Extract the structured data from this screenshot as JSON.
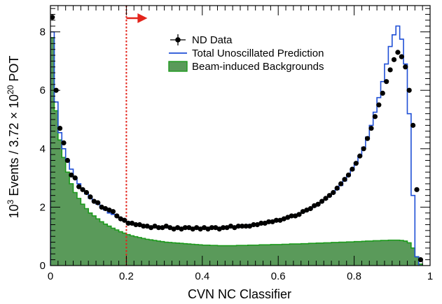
{
  "chart_data": {
    "type": "histogram",
    "xlabel": "CVN NC Classifier",
    "ylabel": {
      "prefix": "10",
      "prefix_sup": "3",
      "middle": " Events / 3.72 × 10",
      "mid_sup": "20",
      "suffix": " POT"
    },
    "xlim": [
      0,
      1
    ],
    "ylim": [
      0,
      8.9
    ],
    "x_ticks": [
      "0",
      "0.2",
      "0.4",
      "0.6",
      "0.8",
      "1"
    ],
    "y_ticks": [
      "0",
      "2",
      "4",
      "6",
      "8"
    ],
    "cut_line": {
      "x": 0.2,
      "style": "dotted",
      "color": "#e3241b",
      "arrow": "right"
    },
    "legend": [
      {
        "label": "ND Data",
        "kind": "marker"
      },
      {
        "label": "Total Unoscillated Prediction",
        "kind": "line"
      },
      {
        "label": "Beam-induced Backgrounds",
        "kind": "fill"
      }
    ],
    "colors": {
      "data": "#000000",
      "prediction": "#1f4fd6",
      "background_fill": "#5a9a5a",
      "background_line": "#1c9a1c",
      "cut": "#e3241b"
    },
    "bin_width": 0.01,
    "series": [
      {
        "name": "ND Data",
        "x": [
          0.005,
          0.015,
          0.025,
          0.035,
          0.045,
          0.055,
          0.065,
          0.075,
          0.085,
          0.095,
          0.105,
          0.115,
          0.125,
          0.135,
          0.145,
          0.155,
          0.165,
          0.175,
          0.185,
          0.195,
          0.205,
          0.215,
          0.225,
          0.235,
          0.245,
          0.255,
          0.265,
          0.275,
          0.285,
          0.295,
          0.305,
          0.315,
          0.325,
          0.335,
          0.345,
          0.355,
          0.365,
          0.375,
          0.385,
          0.395,
          0.405,
          0.415,
          0.425,
          0.435,
          0.445,
          0.455,
          0.465,
          0.475,
          0.485,
          0.495,
          0.505,
          0.515,
          0.525,
          0.535,
          0.545,
          0.555,
          0.565,
          0.575,
          0.585,
          0.595,
          0.605,
          0.615,
          0.625,
          0.635,
          0.645,
          0.655,
          0.665,
          0.675,
          0.685,
          0.695,
          0.705,
          0.715,
          0.725,
          0.735,
          0.745,
          0.755,
          0.765,
          0.775,
          0.785,
          0.795,
          0.805,
          0.815,
          0.825,
          0.835,
          0.845,
          0.855,
          0.865,
          0.875,
          0.885,
          0.895,
          0.905,
          0.915,
          0.925,
          0.935,
          0.945,
          0.955,
          0.965,
          0.975
        ],
        "values": [
          8.5,
          6.0,
          4.7,
          4.2,
          3.6,
          3.1,
          3.0,
          2.7,
          2.6,
          2.5,
          2.35,
          2.2,
          2.15,
          2.0,
          1.95,
          1.9,
          1.85,
          1.7,
          1.6,
          1.55,
          1.45,
          1.45,
          1.4,
          1.4,
          1.35,
          1.35,
          1.3,
          1.35,
          1.3,
          1.3,
          1.35,
          1.3,
          1.25,
          1.3,
          1.25,
          1.3,
          1.3,
          1.25,
          1.3,
          1.25,
          1.3,
          1.25,
          1.3,
          1.3,
          1.25,
          1.3,
          1.3,
          1.35,
          1.3,
          1.35,
          1.35,
          1.35,
          1.35,
          1.4,
          1.4,
          1.45,
          1.45,
          1.5,
          1.5,
          1.55,
          1.55,
          1.6,
          1.65,
          1.7,
          1.7,
          1.75,
          1.85,
          1.9,
          1.95,
          2.05,
          2.1,
          2.2,
          2.3,
          2.4,
          2.5,
          2.65,
          2.8,
          2.95,
          3.1,
          3.3,
          3.5,
          3.75,
          4.0,
          4.35,
          4.7,
          5.1,
          5.5,
          5.9,
          6.3,
          6.7,
          7.05,
          7.3,
          7.15,
          6.8,
          6.0,
          4.8,
          2.6,
          0.2
        ]
      },
      {
        "name": "Total Unoscillated Prediction",
        "values": [
          8.0,
          5.6,
          4.55,
          4.0,
          3.6,
          3.3,
          3.0,
          2.8,
          2.6,
          2.45,
          2.3,
          2.2,
          2.1,
          2.0,
          1.9,
          1.8,
          1.75,
          1.68,
          1.62,
          1.56,
          1.5,
          1.46,
          1.43,
          1.4,
          1.38,
          1.35,
          1.33,
          1.32,
          1.31,
          1.3,
          1.29,
          1.29,
          1.28,
          1.28,
          1.28,
          1.28,
          1.28,
          1.28,
          1.28,
          1.28,
          1.29,
          1.29,
          1.3,
          1.3,
          1.31,
          1.32,
          1.33,
          1.34,
          1.35,
          1.36,
          1.37,
          1.38,
          1.4,
          1.41,
          1.43,
          1.45,
          1.47,
          1.49,
          1.52,
          1.55,
          1.58,
          1.61,
          1.65,
          1.69,
          1.73,
          1.78,
          1.83,
          1.89,
          1.95,
          2.02,
          2.1,
          2.18,
          2.27,
          2.37,
          2.48,
          2.6,
          2.74,
          2.9,
          3.07,
          3.27,
          3.5,
          3.75,
          4.05,
          4.4,
          4.8,
          5.25,
          5.75,
          6.3,
          6.9,
          7.5,
          7.9,
          8.2,
          7.75,
          6.9,
          5.2,
          2.4,
          0.3,
          0.0
        ]
      },
      {
        "name": "Beam-induced Backgrounds",
        "values": [
          7.8,
          5.3,
          4.3,
          3.7,
          3.2,
          2.8,
          2.5,
          2.3,
          2.1,
          1.95,
          1.8,
          1.7,
          1.6,
          1.5,
          1.42,
          1.35,
          1.28,
          1.22,
          1.16,
          1.11,
          1.06,
          1.02,
          0.99,
          0.96,
          0.93,
          0.9,
          0.88,
          0.86,
          0.84,
          0.82,
          0.8,
          0.79,
          0.78,
          0.77,
          0.76,
          0.75,
          0.74,
          0.73,
          0.72,
          0.71,
          0.7,
          0.7,
          0.69,
          0.69,
          0.68,
          0.68,
          0.68,
          0.68,
          0.68,
          0.69,
          0.69,
          0.69,
          0.7,
          0.7,
          0.7,
          0.71,
          0.71,
          0.71,
          0.72,
          0.72,
          0.72,
          0.73,
          0.73,
          0.74,
          0.74,
          0.74,
          0.75,
          0.75,
          0.76,
          0.76,
          0.77,
          0.77,
          0.78,
          0.78,
          0.79,
          0.79,
          0.8,
          0.8,
          0.81,
          0.81,
          0.82,
          0.82,
          0.83,
          0.84,
          0.84,
          0.85,
          0.85,
          0.86,
          0.86,
          0.87,
          0.87,
          0.87,
          0.86,
          0.84,
          0.78,
          0.6,
          0.3,
          0.05
        ]
      }
    ]
  }
}
